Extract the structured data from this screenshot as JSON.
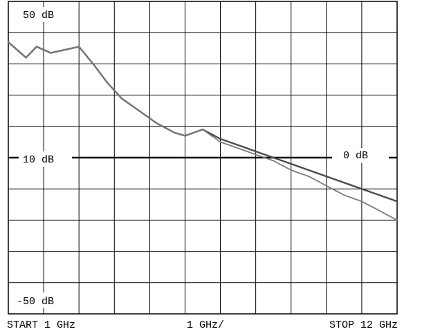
{
  "chart_data": {
    "type": "line",
    "title": "",
    "grid": true,
    "x": {
      "range_ghz": [
        1,
        12
      ],
      "start_label": "START 1 GHz",
      "scale_label": "1 GHz/",
      "stop_label": "STOP 12 GHz"
    },
    "y": {
      "range_db": [
        -50,
        50
      ],
      "top_label": "50 dB",
      "mid_label": "10 dB",
      "bottom_label": "-50 dB"
    },
    "reference_line": {
      "y_db": 0,
      "label": "0 dB"
    },
    "series": [
      {
        "x": [
          1.0,
          1.1,
          1.3,
          1.5,
          1.8,
          2.2,
          2.6,
          3.0,
          3.4,
          3.8,
          4.2,
          4.7,
          5.2,
          5.7,
          6.0,
          6.5,
          7.0,
          7.5,
          8.0,
          8.5,
          9.0,
          9.5,
          10.0,
          10.5,
          11.0,
          11.5,
          12.0
        ],
        "values": [
          37,
          36,
          34,
          32,
          35.5,
          33.5,
          34.5,
          35.5,
          30,
          24,
          19,
          15,
          11,
          8,
          7,
          9,
          6,
          4,
          2,
          0,
          -2,
          -4,
          -6,
          -8,
          -10,
          -12,
          -14
        ]
      },
      {
        "x": [
          1.0,
          1.1,
          1.3,
          1.5,
          1.8,
          2.2,
          2.6,
          3.0,
          3.4,
          3.8,
          4.2,
          4.7,
          5.2,
          5.7,
          6.0,
          6.5,
          7.0,
          7.5,
          8.0,
          8.5,
          9.0,
          9.5,
          10.0,
          10.5,
          11.0,
          11.5,
          12.0
        ],
        "values": [
          37,
          36,
          34,
          32,
          35.5,
          33.5,
          34.5,
          35.5,
          30,
          24,
          19,
          15,
          11,
          8,
          7,
          9,
          5,
          3,
          1,
          -1,
          -4,
          -6,
          -9,
          -12,
          -14,
          -17,
          -20
        ]
      }
    ]
  }
}
